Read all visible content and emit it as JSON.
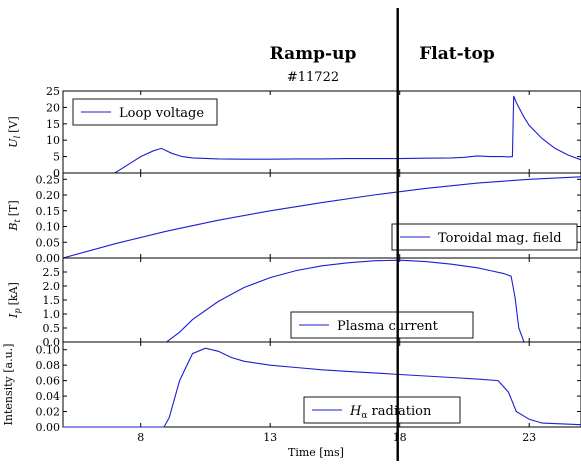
{
  "chart_data": {
    "type": "line",
    "shot_label": "#11722",
    "phase_labels": [
      "Ramp-up",
      "Flat-top"
    ],
    "phase_boundary_x": 18,
    "xlabel": "Time [ms]",
    "xlim": [
      5,
      25
    ],
    "xticks": [
      8,
      13,
      18,
      23
    ],
    "panels": [
      {
        "ylabel": "U_l [V]",
        "ylabel_main": "U",
        "ylabel_sub": "l",
        "ylabel_unit": "[V]",
        "ylim": [
          0,
          25
        ],
        "yticks": [
          0,
          5,
          10,
          15,
          20,
          25
        ],
        "tick_labels": [
          "0",
          "5",
          "10",
          "15",
          "20",
          "25"
        ],
        "legend": "Loop voltage",
        "legend_position": "upper-left",
        "series": [
          {
            "name": "Loop voltage",
            "x": [
              5,
              7,
              7.5,
              8,
              8.5,
              8.8,
              9.2,
              9.6,
              10,
              11,
              12,
              13,
              14,
              15,
              16,
              17,
              18,
              19,
              20,
              20.5,
              21,
              21.5,
              22,
              22.2,
              22.35,
              22.4,
              22.5,
              22.8,
              23,
              23.5,
              24,
              24.5,
              25
            ],
            "y": [
              0,
              0,
              2.5,
              5,
              6.8,
              7.5,
              6.0,
              5.0,
              4.6,
              4.3,
              4.2,
              4.2,
              4.3,
              4.3,
              4.4,
              4.4,
              4.4,
              4.5,
              4.6,
              4.8,
              5.2,
              5.0,
              5.0,
              4.9,
              5.0,
              23.5,
              21.5,
              17.0,
              14.5,
              10.5,
              7.5,
              5.5,
              4.0
            ]
          }
        ]
      },
      {
        "ylabel": "B_t [T]",
        "ylabel_main": "B",
        "ylabel_sub": "t",
        "ylabel_unit": "[T]",
        "ylim": [
          0,
          0.27
        ],
        "yticks": [
          0,
          0.05,
          0.1,
          0.15,
          0.2,
          0.25
        ],
        "tick_labels": [
          "0.00",
          "0.05",
          "0.10",
          "0.15",
          "0.20",
          "0.25"
        ],
        "legend": "Toroidal mag. field",
        "legend_position": "lower-right",
        "series": [
          {
            "name": "Toroidal mag. field",
            "x": [
              5,
              7,
              9,
              11,
              13,
              15,
              17,
              19,
              21,
              23,
              25
            ],
            "y": [
              0.0,
              0.045,
              0.085,
              0.12,
              0.15,
              0.176,
              0.2,
              0.221,
              0.238,
              0.25,
              0.258
            ]
          }
        ]
      },
      {
        "ylabel": "I_p [kA]",
        "ylabel_main": "I",
        "ylabel_sub": "p",
        "ylabel_unit": "[kA]",
        "ylim": [
          0,
          3.0
        ],
        "yticks": [
          0,
          0.5,
          1.0,
          1.5,
          2.0,
          2.5
        ],
        "tick_labels": [
          "0.0",
          "0.5",
          "1.0",
          "1.5",
          "2.0",
          "2.5"
        ],
        "legend": "Plasma current",
        "legend_position": "lower-center",
        "series": [
          {
            "name": "Plasma current",
            "x": [
              5,
              9,
              9.5,
              10,
              11,
              12,
              13,
              14,
              15,
              16,
              17,
              18,
              19,
              20,
              21,
              21.5,
              22,
              22.3,
              22.45,
              22.6,
              22.8,
              25
            ],
            "y": [
              0,
              0,
              0.35,
              0.8,
              1.45,
              1.95,
              2.3,
              2.55,
              2.72,
              2.83,
              2.9,
              2.92,
              2.87,
              2.78,
              2.65,
              2.55,
              2.45,
              2.35,
              1.6,
              0.5,
              0.0,
              0.0
            ]
          }
        ]
      },
      {
        "ylabel": "Intensity [a.u.]",
        "ylim": [
          0,
          0.11
        ],
        "yticks": [
          0,
          0.02,
          0.04,
          0.06,
          0.08,
          0.1
        ],
        "tick_labels": [
          "0.00",
          "0.02",
          "0.04",
          "0.06",
          "0.08",
          "0.10"
        ],
        "legend": "H_α radiation",
        "legend_main": "H",
        "legend_sub": "α",
        "legend_rest": " radiation",
        "legend_position": "lower-center",
        "series": [
          {
            "name": "H_α radiation",
            "x": [
              5,
              8.9,
              9.1,
              9.5,
              10,
              10.5,
              11,
              11.5,
              12,
              13,
              14,
              15,
              16,
              17,
              18,
              19,
              20,
              21,
              21.8,
              22.2,
              22.5,
              23,
              23.5,
              25
            ],
            "y": [
              0,
              0,
              0.012,
              0.06,
              0.095,
              0.102,
              0.098,
              0.09,
              0.085,
              0.08,
              0.077,
              0.074,
              0.072,
              0.07,
              0.068,
              0.066,
              0.064,
              0.062,
              0.06,
              0.045,
              0.02,
              0.01,
              0.005,
              0.003
            ]
          }
        ]
      }
    ]
  }
}
